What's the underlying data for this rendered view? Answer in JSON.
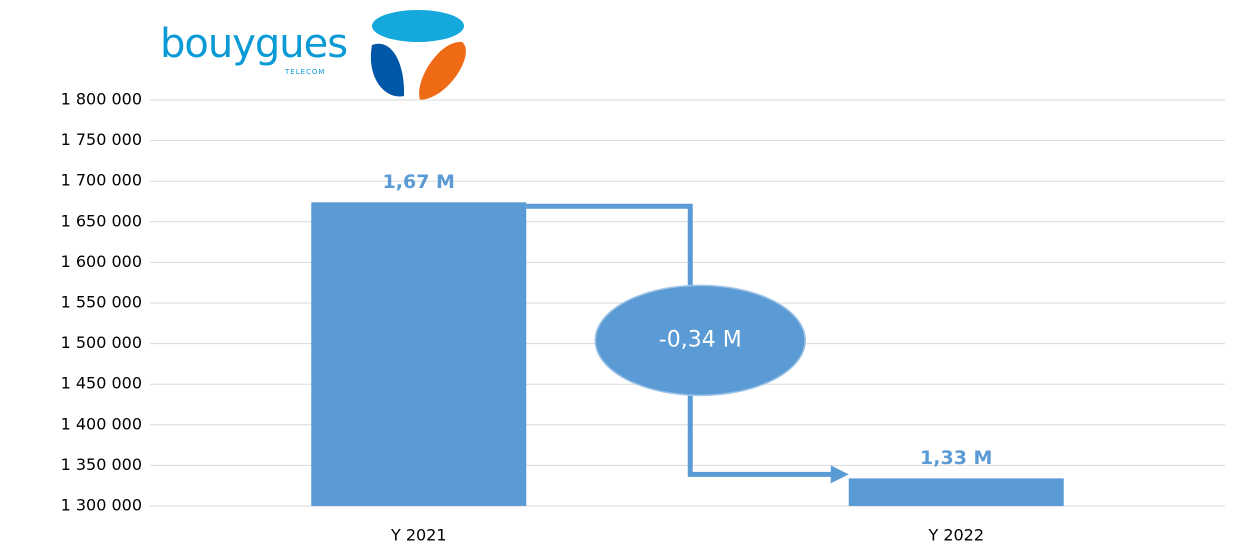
{
  "logo": {
    "name": "bouygues",
    "sub": "TELECOM"
  },
  "chart_data": {
    "type": "bar",
    "categories": [
      "Y 2021",
      "Y 2022"
    ],
    "values": [
      1674000,
      1334000
    ],
    "value_labels": [
      "1,67 M",
      "1,33 M"
    ],
    "color": "#5b9bd5",
    "annotation": "-0,34 M",
    "ylim": [
      1300000,
      1800000
    ],
    "yticks": [
      {
        "value": 1300000,
        "label": "1 300 000"
      },
      {
        "value": 1350000,
        "label": "1 350 000"
      },
      {
        "value": 1400000,
        "label": "1 400 000"
      },
      {
        "value": 1450000,
        "label": "1 450 000"
      },
      {
        "value": 1500000,
        "label": "1 500 000"
      },
      {
        "value": 1550000,
        "label": "1 550 000"
      },
      {
        "value": 1600000,
        "label": "1 600 000"
      },
      {
        "value": 1650000,
        "label": "1 650 000"
      },
      {
        "value": 1700000,
        "label": "1 700 000"
      },
      {
        "value": 1750000,
        "label": "1 750 000"
      },
      {
        "value": 1800000,
        "label": "1 800 000"
      }
    ],
    "grid": true
  }
}
